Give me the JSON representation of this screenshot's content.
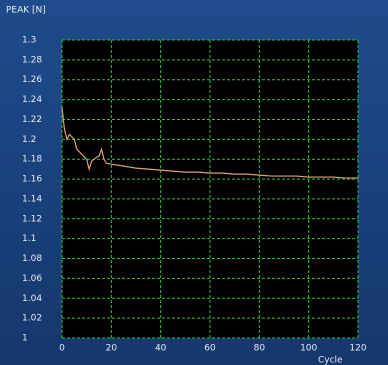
{
  "chart_data": {
    "type": "line",
    "title": "PEAK [N]",
    "x_label": "Cycle",
    "xlim": [
      0,
      120
    ],
    "xticks": [
      0,
      20,
      40,
      60,
      80,
      100,
      120
    ],
    "ylim": [
      1,
      1.3
    ],
    "yticks": [
      1.3,
      1.28,
      1.26,
      1.24,
      1.22,
      1.2,
      1.18,
      1.16,
      1.14,
      1.12,
      1.1,
      1.08,
      1.06,
      1.04,
      1.02,
      1
    ],
    "grid": true,
    "series": [
      {
        "name": "PEAK",
        "color": "#e0a070",
        "x": [
          0,
          1,
          2,
          3,
          5,
          6,
          8,
          10,
          11,
          12,
          14,
          15,
          16,
          17,
          18,
          20,
          25,
          30,
          35,
          40,
          45,
          50,
          55,
          60,
          65,
          70,
          75,
          80,
          85,
          90,
          95,
          100,
          105,
          110,
          115,
          120
        ],
        "values": [
          1.232,
          1.21,
          1.2,
          1.205,
          1.2,
          1.19,
          1.185,
          1.18,
          1.17,
          1.178,
          1.182,
          1.183,
          1.19,
          1.18,
          1.176,
          1.175,
          1.173,
          1.171,
          1.17,
          1.169,
          1.168,
          1.167,
          1.167,
          1.166,
          1.166,
          1.165,
          1.165,
          1.164,
          1.163,
          1.163,
          1.163,
          1.162,
          1.162,
          1.162,
          1.161,
          1.161
        ]
      }
    ]
  }
}
